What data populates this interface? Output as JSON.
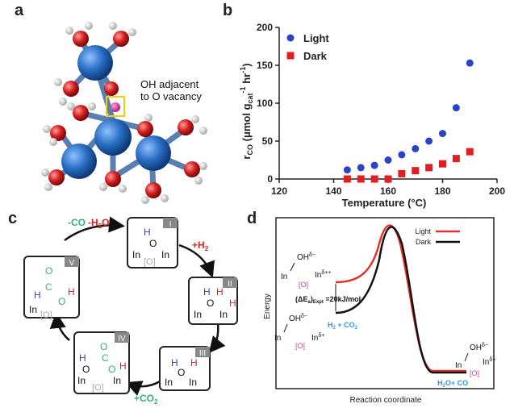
{
  "figure": {
    "panel_letters": {
      "a": "a",
      "b": "b",
      "c": "c",
      "d": "d"
    }
  },
  "panel_a": {
    "annotation_line1": "OH adjacent",
    "annotation_line2": "to O vacancy",
    "colors": {
      "indium": "#2a6fc4",
      "oxygen": "#d42020",
      "hydrogen": "#f0f0f0",
      "highlight_box": "#f0d000",
      "vacancy": "#d040a0"
    }
  },
  "chart_data": {
    "type": "scatter",
    "title": "",
    "xlabel": "Temperature (°C)",
    "ylabel_main": "r",
    "ylabel_sub": "CO",
    "ylabel_rest": " (μmol g",
    "ylabel_cat": "cat",
    "ylabel_sup1": "-1",
    "ylabel_hr": " hr",
    "ylabel_sup2": "-1",
    "ylabel_close": ")",
    "xlim": [
      120,
      200
    ],
    "ylim": [
      0,
      200
    ],
    "xticks": [
      "120",
      "140",
      "160",
      "180",
      "200"
    ],
    "yticks": [
      "0",
      "50",
      "100",
      "150",
      "200"
    ],
    "legend_position": "top-left",
    "series": [
      {
        "name": "Light",
        "marker": "circle",
        "color": "#2a44c8",
        "x": [
          145,
          150,
          155,
          160,
          165,
          170,
          175,
          180,
          185,
          190
        ],
        "y": [
          12,
          15,
          18,
          25,
          32,
          40,
          50,
          60,
          94,
          153
        ]
      },
      {
        "name": "Dark",
        "marker": "square",
        "color": "#e02020",
        "x": [
          145,
          150,
          155,
          160,
          165,
          170,
          175,
          180,
          185,
          190
        ],
        "y": [
          0,
          0,
          0,
          0,
          7,
          11,
          15,
          20,
          27,
          36
        ]
      }
    ]
  },
  "panel_c": {
    "steps": [
      {
        "numeral": "I"
      },
      {
        "numeral": "II"
      },
      {
        "numeral": "III"
      },
      {
        "numeral": "IV"
      },
      {
        "numeral": "V"
      }
    ],
    "arrow_labels": {
      "h2": "+H",
      "h2_sub": "2",
      "co2": "+CO",
      "co2_sub": "2",
      "co_loss": "-CO",
      "h2o_loss": "-H",
      "h2o_sub": "2",
      "h2o_o": "O"
    },
    "atoms": {
      "in": "In",
      "o": "O",
      "h": "H",
      "c": "C",
      "vac": "[O]"
    }
  },
  "panel_d": {
    "xlabel": "Reaction coordinate",
    "ylabel": "Energy",
    "legend": [
      {
        "name": "Light",
        "color": "#e8302a"
      },
      {
        "name": "Dark",
        "color": "#111111"
      }
    ],
    "energy_label_main": "(ΔE",
    "energy_label_sub1": "a",
    "energy_label_mid": ")",
    "energy_label_sub2": "Expt",
    "energy_label_rest": " =20kJ/mol",
    "reactant_label": "H",
    "reactant_sub": "2",
    "reactant_rest": " + CO",
    "reactant_sub2": "2",
    "product_label": "H",
    "product_sub": "2",
    "product_rest": "O+ CO",
    "species_labels": {
      "oh": "OH",
      "in": "In",
      "vac": "[O]",
      "delta_minus": "δ−",
      "delta_plus": "δ+",
      "delta_plusplus": "δ++"
    }
  }
}
